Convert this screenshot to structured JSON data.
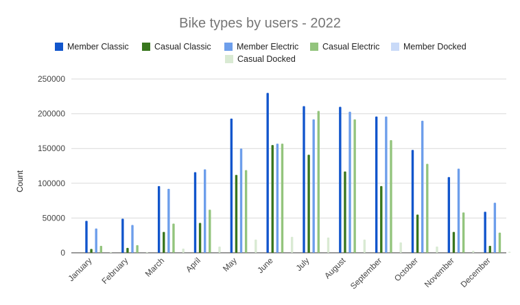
{
  "chart_data": {
    "type": "bar",
    "title": "Bike types by users - 2022",
    "xlabel": "",
    "ylabel": "Count",
    "ylim": [
      0,
      250000
    ],
    "yticks": [
      "0",
      "50000",
      "100000",
      "150000",
      "200000",
      "250000"
    ],
    "grid": true,
    "legend_position": "top",
    "categories": [
      "January",
      "February",
      "March",
      "April",
      "May",
      "June",
      "July",
      "August",
      "September",
      "October",
      "November",
      "December"
    ],
    "series": [
      {
        "name": "Member Classic",
        "color": "#1155cc",
        "values": [
          46000,
          49000,
          96000,
          116000,
          193000,
          230000,
          211000,
          210000,
          196000,
          148000,
          109000,
          59000
        ]
      },
      {
        "name": "Casual Classic",
        "color": "#38761d",
        "values": [
          5500,
          7000,
          30000,
          43000,
          112000,
          155000,
          141000,
          117000,
          96000,
          55000,
          30000,
          10000
        ]
      },
      {
        "name": "Member Electric",
        "color": "#6d9eeb",
        "values": [
          35000,
          40000,
          92000,
          120000,
          150000,
          157000,
          192000,
          203000,
          196000,
          190000,
          121000,
          72000
        ]
      },
      {
        "name": "Casual Electric",
        "color": "#93c47d",
        "values": [
          10000,
          11000,
          42000,
          62000,
          119000,
          157000,
          204000,
          192000,
          162000,
          128000,
          58000,
          29000
        ]
      },
      {
        "name": "Member Docked",
        "color": "#c9daf8",
        "values": [
          0,
          0,
          0,
          0,
          0,
          0,
          0,
          0,
          0,
          0,
          0,
          0
        ]
      },
      {
        "name": "Casual Docked",
        "color": "#d9ead3",
        "values": [
          1000,
          1000,
          6000,
          9000,
          19000,
          23000,
          22000,
          19000,
          15000,
          9000,
          3000,
          1500
        ]
      }
    ]
  }
}
